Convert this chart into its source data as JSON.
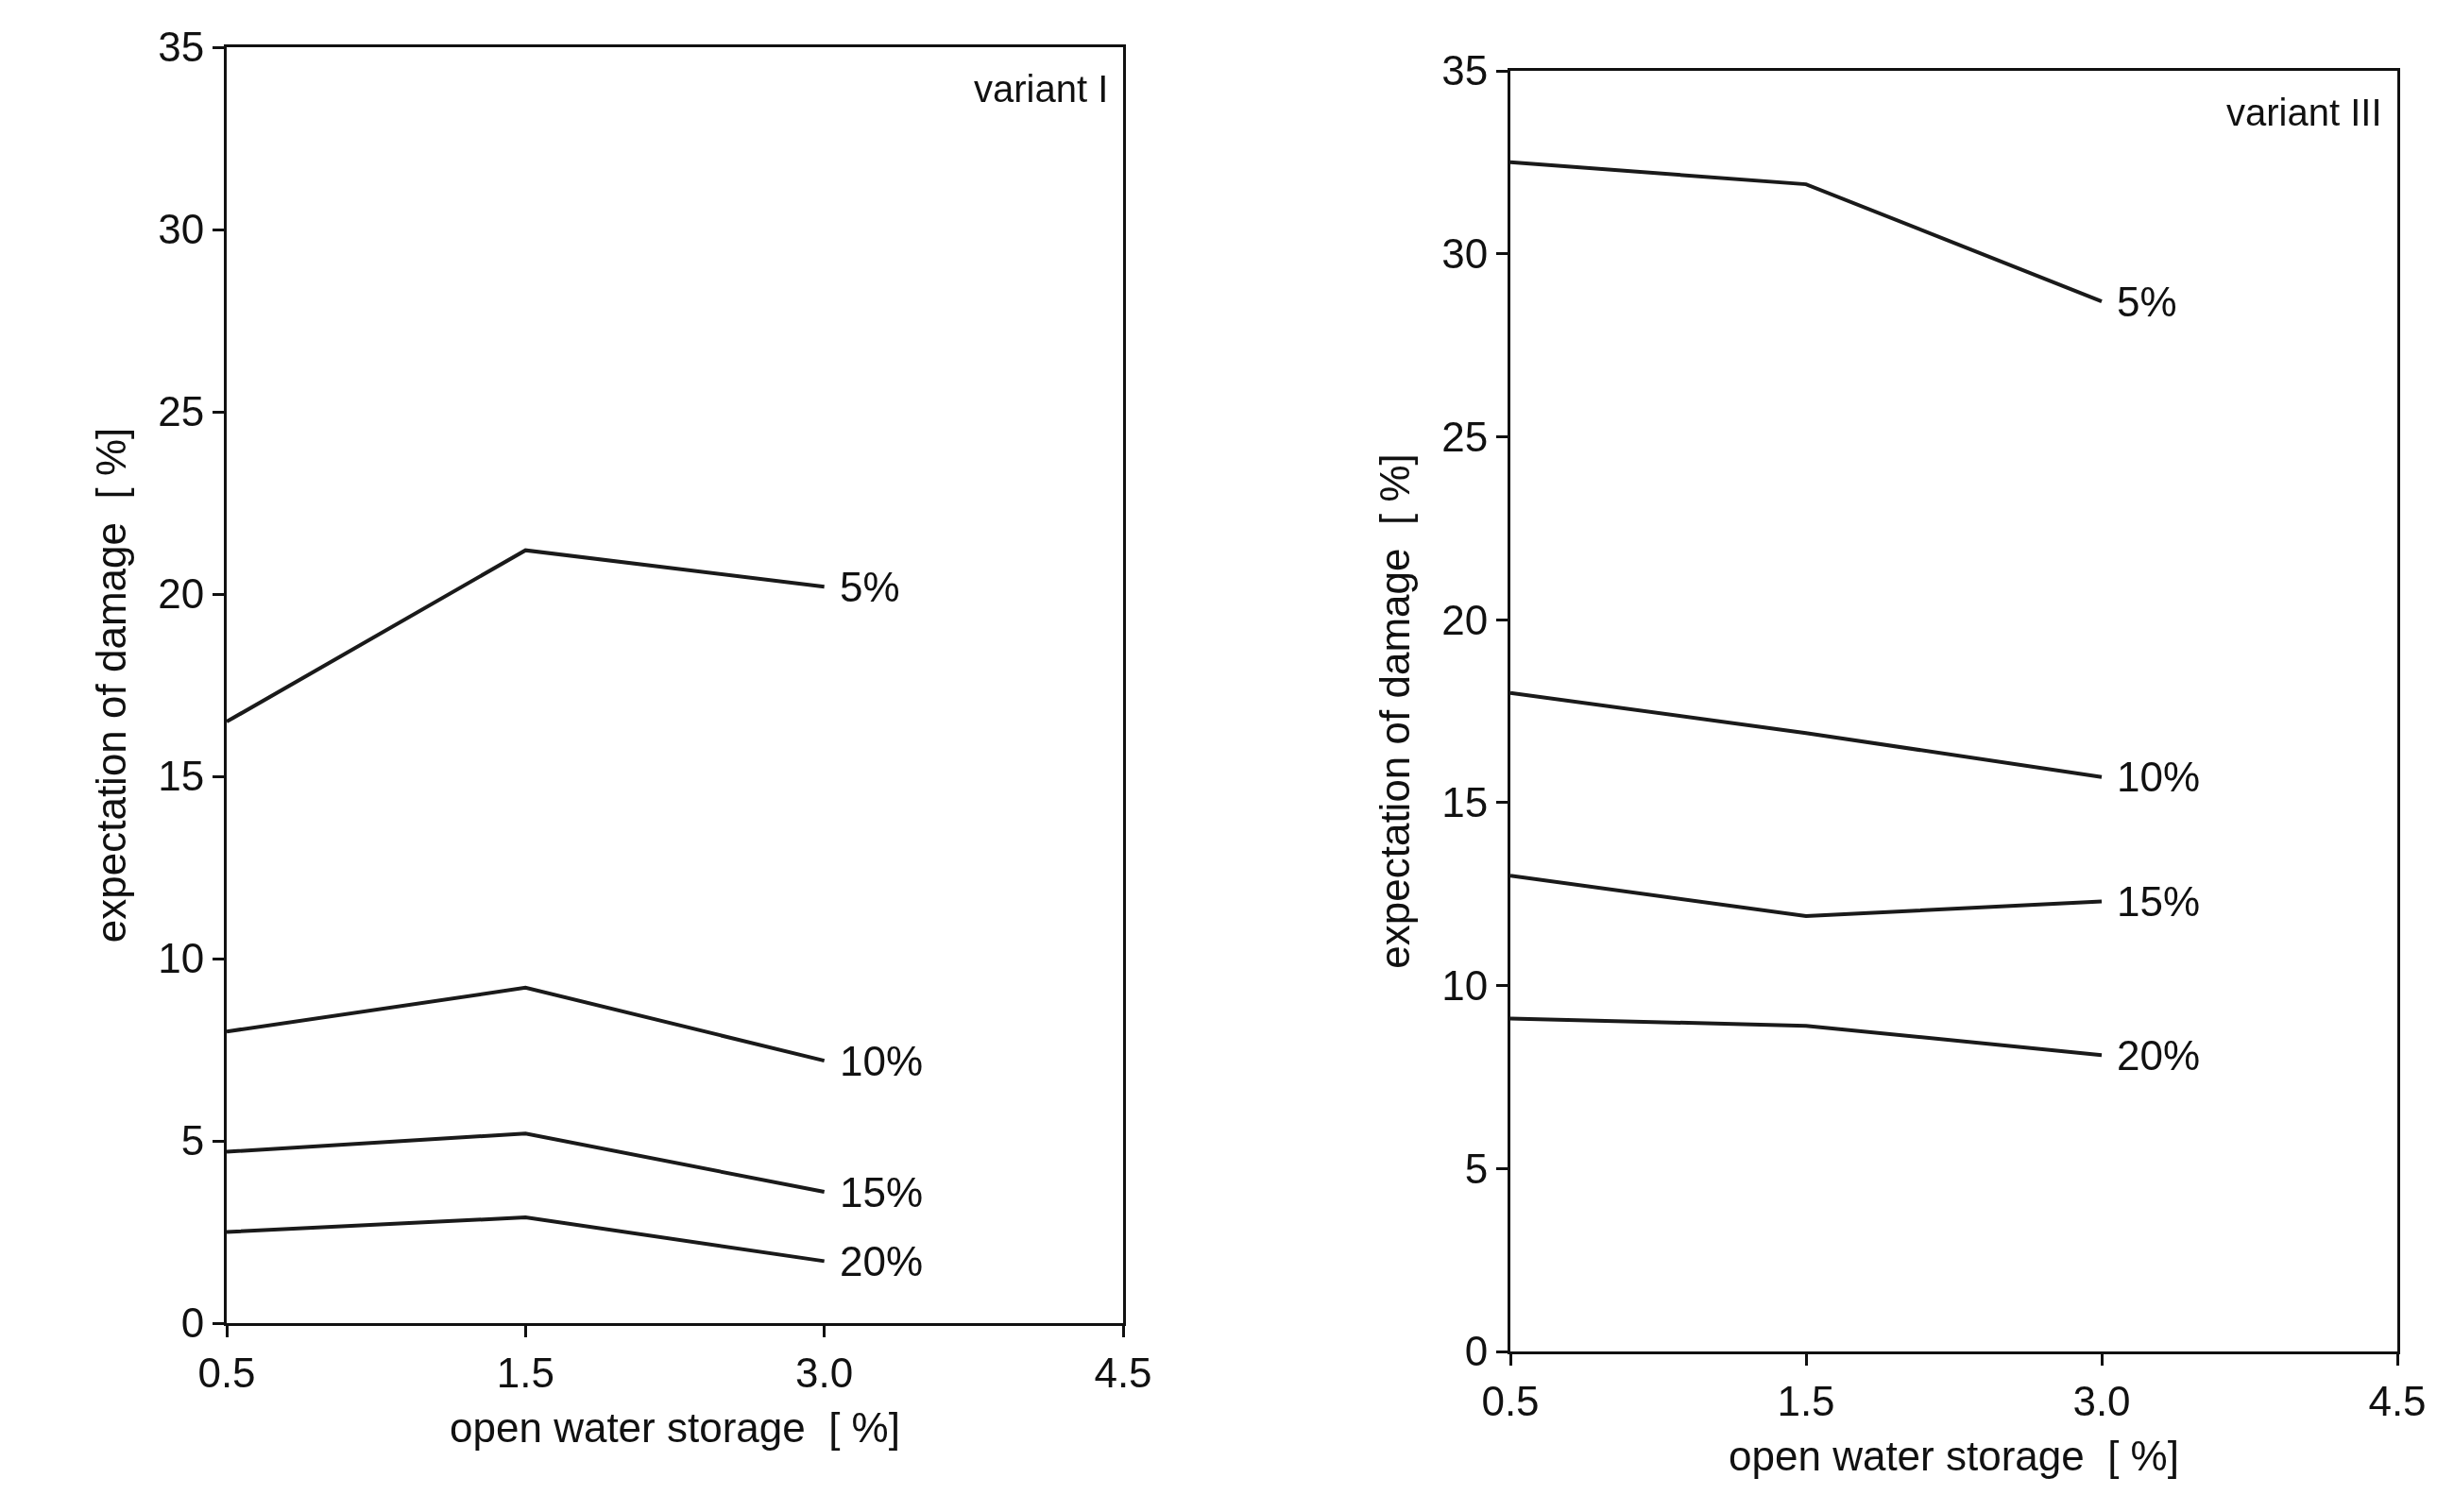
{
  "chart_data": [
    {
      "type": "line",
      "categories": [
        "0.5",
        "1.5",
        "3.0",
        "4.5"
      ],
      "xlabel": "open water storage  [ %]",
      "ylabel": "expectation of damage  [ %]",
      "ylim": [
        0,
        35
      ],
      "yticks": [
        0,
        5,
        10,
        15,
        20,
        25,
        30,
        35
      ],
      "grid": false,
      "legend": false,
      "marker": "none",
      "line_style": "solid",
      "annotations": [
        "variant I"
      ],
      "series": [
        {
          "name": "5%",
          "color": "#1a1a1a",
          "values": [
            16.5,
            21.2,
            20.2,
            null
          ]
        },
        {
          "name": "10%",
          "color": "#1a1a1a",
          "values": [
            8.0,
            9.2,
            7.2,
            null
          ]
        },
        {
          "name": "15%",
          "color": "#1a1a1a",
          "values": [
            4.7,
            5.2,
            3.6,
            null
          ]
        },
        {
          "name": "20%",
          "color": "#1a1a1a",
          "values": [
            2.5,
            2.9,
            1.7,
            null
          ]
        }
      ]
    },
    {
      "type": "line",
      "categories": [
        "0.5",
        "1.5",
        "3.0",
        "4.5"
      ],
      "xlabel": "open water storage  [ %]",
      "ylabel": "expectation of damage  [ %]",
      "ylim": [
        0,
        35
      ],
      "yticks": [
        0,
        5,
        10,
        15,
        20,
        25,
        30,
        35
      ],
      "grid": false,
      "legend": false,
      "marker": "none",
      "line_style": "solid",
      "annotations": [
        "variant III"
      ],
      "series": [
        {
          "name": "5%",
          "color": "#1a1a1a",
          "values": [
            32.5,
            31.9,
            28.7,
            null
          ]
        },
        {
          "name": "10%",
          "color": "#1a1a1a",
          "values": [
            18.0,
            16.9,
            15.7,
            null
          ]
        },
        {
          "name": "15%",
          "color": "#1a1a1a",
          "values": [
            13.0,
            11.9,
            12.3,
            null
          ]
        },
        {
          "name": "20%",
          "color": "#1a1a1a",
          "values": [
            9.1,
            8.9,
            8.1,
            null
          ]
        }
      ]
    }
  ]
}
